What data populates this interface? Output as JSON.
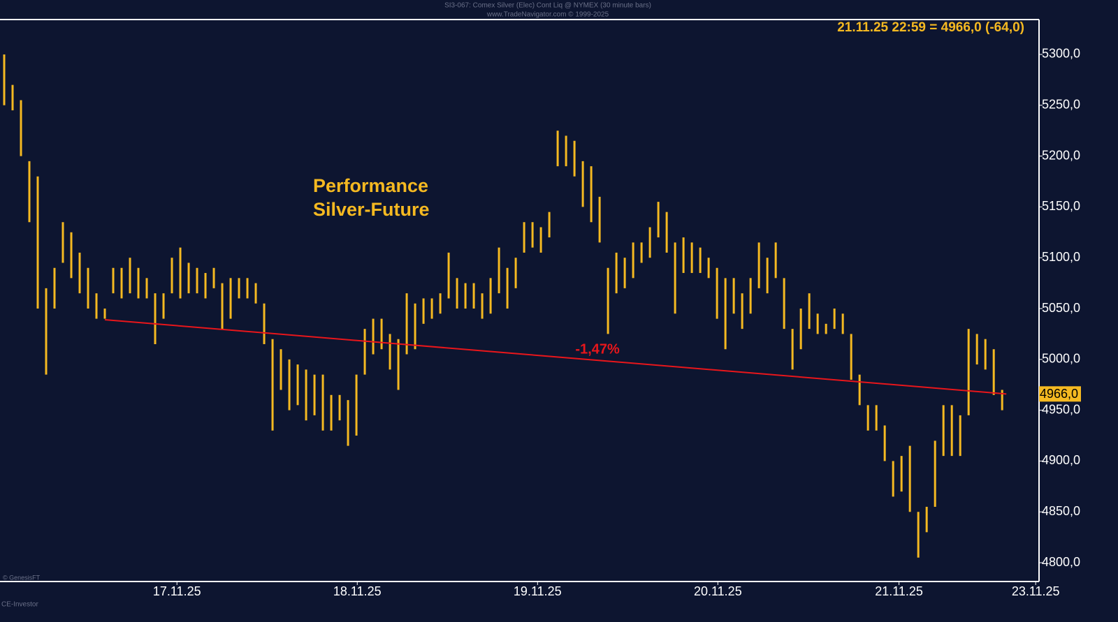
{
  "chart_data": {
    "type": "hlc",
    "header": "SI3-067:  Comex Silver (Elec) Cont Liq @ NYMEX  (30 minute bars)",
    "subheader": "www.TradeNavigator.com © 1999-2025",
    "last_quote": "21.11.25 22:59 = 4966,0 (-64,0)",
    "annotation": [
      "Performance",
      "Silver-Future"
    ],
    "copyright": "© GenesisFT",
    "source": "CE-Investor",
    "color": "#f5b921",
    "high": [
      5300,
      5270,
      5255,
      5195,
      5180,
      5070,
      5090,
      5135,
      5125,
      5105,
      5090,
      5065,
      5050,
      5090,
      5090,
      5100,
      5090,
      5080,
      5065,
      5065,
      5100,
      5110,
      5095,
      5090,
      5085,
      5090,
      5075,
      5080,
      5080,
      5080,
      5075,
      5055,
      5020,
      5010,
      5000,
      4995,
      4990,
      4985,
      4985,
      4965,
      4965,
      4960,
      4985,
      5030,
      5040,
      5040,
      5025,
      5020,
      5065,
      5055,
      5060,
      5060,
      5065,
      5105,
      5080,
      5075,
      5075,
      5065,
      5080,
      5110,
      5090,
      5100,
      5135,
      5135,
      5130,
      5145,
      5225,
      5220,
      5215,
      5195,
      5190,
      5160,
      5090,
      5105,
      5100,
      5115,
      5115,
      5130,
      5155,
      5145,
      5115,
      5120,
      5115,
      5110,
      5100,
      5090,
      5080,
      5080,
      5065,
      5080,
      5115,
      5100,
      5115,
      5080,
      5030,
      5050,
      5065,
      5045,
      5035,
      5050,
      5045,
      5025,
      4985,
      4955,
      4955,
      4935,
      4900,
      4905,
      4915,
      4850,
      4855,
      4920,
      4955,
      4955,
      4945,
      5030,
      5025,
      5020,
      5010,
      4970
    ],
    "low": [
      5250,
      5245,
      5200,
      5135,
      5050,
      4985,
      5050,
      5095,
      5080,
      5065,
      5050,
      5040,
      5040,
      5065,
      5060,
      5065,
      5060,
      5060,
      5015,
      5040,
      5065,
      5060,
      5065,
      5065,
      5060,
      5070,
      5030,
      5040,
      5060,
      5060,
      5055,
      5015,
      4930,
      4970,
      4950,
      4955,
      4940,
      4945,
      4930,
      4930,
      4940,
      4915,
      4925,
      4985,
      5005,
      5010,
      4990,
      4970,
      5005,
      5010,
      5035,
      5040,
      5045,
      5060,
      5050,
      5050,
      5050,
      5040,
      5045,
      5065,
      5050,
      5070,
      5105,
      5110,
      5105,
      5120,
      5190,
      5190,
      5180,
      5150,
      5135,
      5115,
      5025,
      5065,
      5070,
      5080,
      5095,
      5100,
      5120,
      5105,
      5045,
      5085,
      5085,
      5085,
      5080,
      5040,
      5010,
      5045,
      5030,
      5045,
      5070,
      5065,
      5080,
      5030,
      4990,
      5010,
      5030,
      5025,
      5025,
      5030,
      5025,
      4980,
      4955,
      4930,
      4930,
      4900,
      4865,
      4870,
      4850,
      4805,
      4830,
      4855,
      4905,
      4905,
      4905,
      4945,
      4995,
      4990,
      4965,
      4950
    ],
    "trendline": {
      "color": "#e8161b",
      "start_x": 12,
      "start_value": 5039,
      "end_x": 119.5,
      "end_value": 4966,
      "label": "-1,47%"
    },
    "last_price": {
      "value": 4966,
      "label": "4966,0"
    },
    "xlim": [
      -0.5,
      123.4
    ],
    "xticks": [
      {
        "value": 20.6,
        "label": "17.11.25"
      },
      {
        "value": 42.1,
        "label": "18.11.25"
      },
      {
        "value": 63.6,
        "label": "19.11.25"
      },
      {
        "value": 85.1,
        "label": "20.11.25"
      },
      {
        "value": 106.7,
        "label": "21.11.25"
      },
      {
        "value": 123,
        "label": "23.11.25"
      }
    ],
    "ylim": [
      4781.5,
      5334.3
    ],
    "yticks": [
      {
        "value": 4800,
        "label": "4800,0"
      },
      {
        "value": 4850,
        "label": "4850,0"
      },
      {
        "value": 4900,
        "label": "4900,0"
      },
      {
        "value": 4950,
        "label": "4950,0"
      },
      {
        "value": 5000,
        "label": "5000,0"
      },
      {
        "value": 5050,
        "label": "5050,0"
      },
      {
        "value": 5100,
        "label": "5100,0"
      },
      {
        "value": 5150,
        "label": "5150,0"
      },
      {
        "value": 5200,
        "label": "5200,0"
      },
      {
        "value": 5250,
        "label": "5250,0"
      },
      {
        "value": 5300,
        "label": "5300,0"
      }
    ]
  }
}
